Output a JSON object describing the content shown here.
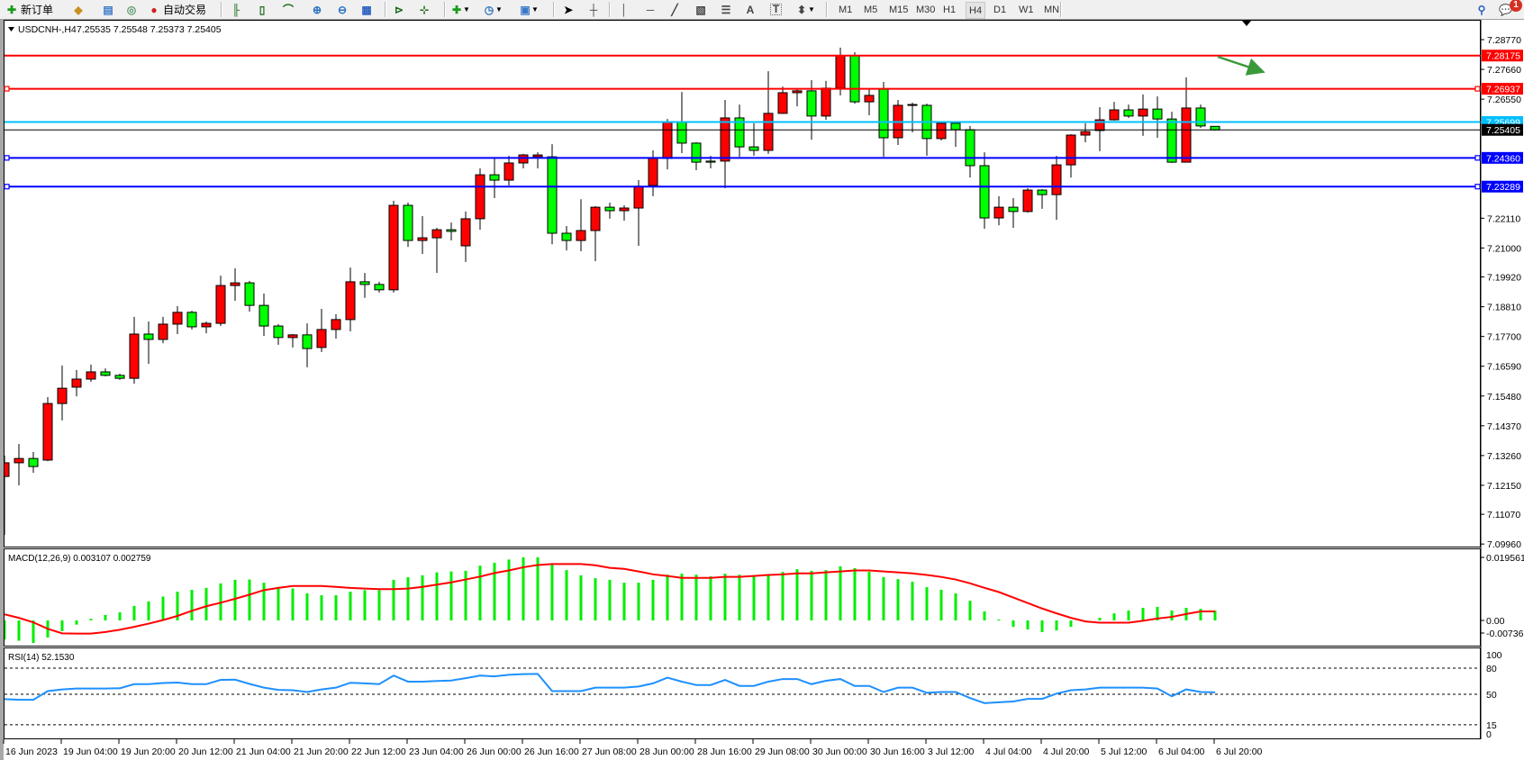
{
  "toolbar": {
    "new_order": "新订单",
    "auto_trading": "自动交易",
    "timeframes": [
      "M1",
      "M5",
      "M15",
      "M30",
      "H1",
      "H4",
      "D1",
      "W1",
      "MN"
    ],
    "active_timeframe": "H4",
    "notification_count": "1",
    "icons": [
      "new-order-icon",
      "market-watch-icon",
      "navigator-icon",
      "signals-icon",
      "auto-trading-icon",
      "bar-chart-icon",
      "candlestick-chart-icon",
      "line-chart-icon",
      "zoom-in-icon",
      "zoom-out-icon",
      "tile-windows-icon",
      "chart-shift-icon",
      "auto-scroll-icon",
      "indicators-icon",
      "periods-icon",
      "templates-icon",
      "cursor-icon",
      "crosshair-icon",
      "vertical-line-icon",
      "horizontal-line-icon",
      "trendline-icon",
      "equidistant-channel-icon",
      "fibonacci-icon",
      "text-icon",
      "text-label-icon",
      "arrows-icon",
      "search-icon",
      "notification-icon"
    ]
  },
  "header": {
    "symbol": "USDCNH-,H4",
    "ohlc": "7.25535 7.25548 7.25373 7.25405"
  },
  "colors": {
    "bull_candle": "#ff0000",
    "bear_candle": "#00ff00",
    "resistance_line": "#ff0000",
    "support_line": "#0000ff",
    "mid_line": "#00bfff",
    "bid_line": "#000000",
    "macd_histogram": "#00ee00",
    "macd_signal": "#ff0000",
    "rsi_line": "#1e90ff",
    "annotation_arrow": "#3a9a3a"
  },
  "chart_data": {
    "type": "candlestick",
    "symbol": "USDCNH-",
    "timeframe": "H4",
    "ylim": [
      7.0996,
      7.2877
    ],
    "candles": [
      [
        7.1248,
        7.1326,
        7.103,
        7.1299
      ],
      [
        7.1299,
        7.1369,
        7.1215,
        7.1315
      ],
      [
        7.1315,
        7.1339,
        7.1262,
        7.1285
      ],
      [
        7.1309,
        7.1544,
        7.1305,
        7.152
      ],
      [
        7.152,
        7.1662,
        7.1457,
        7.1577
      ],
      [
        7.1581,
        7.1645,
        7.1547,
        7.1611
      ],
      [
        7.1611,
        7.1665,
        7.1601,
        7.1638
      ],
      [
        7.1638,
        7.1651,
        7.1621,
        7.1625
      ],
      [
        7.1625,
        7.1631,
        7.1608,
        7.1614
      ],
      [
        7.1614,
        7.1843,
        7.1594,
        7.1779
      ],
      [
        7.1779,
        7.1826,
        7.1668,
        7.1759
      ],
      [
        7.1759,
        7.1843,
        7.1745,
        7.1816
      ],
      [
        7.1816,
        7.1883,
        7.1779,
        7.186
      ],
      [
        7.186,
        7.1866,
        7.1796,
        7.1806
      ],
      [
        7.1806,
        7.1826,
        7.1782,
        7.1819
      ],
      [
        7.1819,
        7.1997,
        7.1809,
        7.196
      ],
      [
        7.196,
        7.2024,
        7.1903,
        7.197
      ],
      [
        7.197,
        7.1977,
        7.1863,
        7.1886
      ],
      [
        7.1886,
        7.193,
        7.1772,
        7.1809
      ],
      [
        7.1809,
        7.1816,
        7.1739,
        7.1766
      ],
      [
        7.1766,
        7.1779,
        7.1729,
        7.1776
      ],
      [
        7.1776,
        7.1819,
        7.1655,
        7.1725
      ],
      [
        7.1729,
        7.1873,
        7.1712,
        7.1796
      ],
      [
        7.1796,
        7.1853,
        7.1762,
        7.1833
      ],
      [
        7.1833,
        7.2027,
        7.1789,
        7.1974
      ],
      [
        7.1974,
        7.2007,
        7.1914,
        7.1964
      ],
      [
        7.1964,
        7.1974,
        7.1934,
        7.1944
      ],
      [
        7.1944,
        7.2276,
        7.1934,
        7.2259
      ],
      [
        7.2259,
        7.2269,
        7.2104,
        7.2128
      ],
      [
        7.2128,
        7.2219,
        7.2078,
        7.2138
      ],
      [
        7.2138,
        7.2175,
        7.2007,
        7.2168
      ],
      [
        7.2168,
        7.2195,
        7.2128,
        7.2162
      ],
      [
        7.2108,
        7.2236,
        7.2048,
        7.2209
      ],
      [
        7.2209,
        7.2397,
        7.2168,
        7.2373
      ],
      [
        7.2373,
        7.2434,
        7.2286,
        7.2353
      ],
      [
        7.2353,
        7.2444,
        7.2333,
        7.2417
      ],
      [
        7.2417,
        7.2451,
        7.2397,
        7.2447
      ],
      [
        7.244,
        7.2457,
        7.2397,
        7.2447
      ],
      [
        7.244,
        7.2487,
        7.2114,
        7.2155
      ],
      [
        7.2155,
        7.2182,
        7.2091,
        7.2128
      ],
      [
        7.2128,
        7.2282,
        7.2088,
        7.2165
      ],
      [
        7.2165,
        7.2256,
        7.2051,
        7.2252
      ],
      [
        7.2252,
        7.2269,
        7.2209,
        7.2239
      ],
      [
        7.2239,
        7.2259,
        7.2202,
        7.2249
      ],
      [
        7.2249,
        7.2353,
        7.2108,
        7.233
      ],
      [
        7.2333,
        7.2464,
        7.2293,
        7.2434
      ],
      [
        7.2434,
        7.2581,
        7.2393,
        7.2568
      ],
      [
        7.2568,
        7.2682,
        7.2454,
        7.2491
      ],
      [
        7.2491,
        7.2494,
        7.239,
        7.242
      ],
      [
        7.2424,
        7.2444,
        7.2397,
        7.242
      ],
      [
        7.2424,
        7.2652,
        7.2323,
        7.2585
      ],
      [
        7.2585,
        7.2635,
        7.244,
        7.2477
      ],
      [
        7.2477,
        7.2565,
        7.2444,
        7.2464
      ],
      [
        7.2464,
        7.2759,
        7.2451,
        7.2602
      ],
      [
        7.2602,
        7.2702,
        7.26,
        7.2679
      ],
      [
        7.2679,
        7.2692,
        7.2628,
        7.2686
      ],
      [
        7.2686,
        7.2726,
        7.2504,
        7.2592
      ],
      [
        7.2592,
        7.2723,
        7.2578,
        7.2696
      ],
      [
        7.2696,
        7.2847,
        7.2669,
        7.2817
      ],
      [
        7.2817,
        7.283,
        7.2638,
        7.2645
      ],
      [
        7.2645,
        7.2696,
        7.2595,
        7.2669
      ],
      [
        7.2692,
        7.2719,
        7.244,
        7.2511
      ],
      [
        7.2511,
        7.2652,
        7.2484,
        7.2632
      ],
      [
        7.2635,
        7.2642,
        7.2531,
        7.2632
      ],
      [
        7.2632,
        7.2638,
        7.2444,
        7.2508
      ],
      [
        7.2508,
        7.2565,
        7.2501,
        7.2565
      ],
      [
        7.2565,
        7.2565,
        7.2477,
        7.2541
      ],
      [
        7.2541,
        7.2555,
        7.2363,
        7.2407
      ],
      [
        7.2407,
        7.2457,
        7.2172,
        7.2212
      ],
      [
        7.2212,
        7.2293,
        7.2185,
        7.2252
      ],
      [
        7.2252,
        7.2286,
        7.2175,
        7.2236
      ],
      [
        7.2236,
        7.2323,
        7.2232,
        7.2316
      ],
      [
        7.2316,
        7.2319,
        7.2246,
        7.2299
      ],
      [
        7.2299,
        7.2444,
        7.2205,
        7.241
      ],
      [
        7.241,
        7.2524,
        7.2363,
        7.2521
      ],
      [
        7.2521,
        7.2565,
        7.2494,
        7.2534
      ],
      [
        7.2538,
        7.2625,
        7.2461,
        7.2578
      ],
      [
        7.2578,
        7.2645,
        7.2575,
        7.2615
      ],
      [
        7.2615,
        7.2635,
        7.2585,
        7.2592
      ],
      [
        7.2592,
        7.2672,
        7.2518,
        7.2618
      ],
      [
        7.2618,
        7.2665,
        7.2511,
        7.2581
      ],
      [
        7.2581,
        7.2608,
        7.2417,
        7.242
      ],
      [
        7.242,
        7.2736,
        7.242,
        7.2622
      ],
      [
        7.2622,
        7.2635,
        7.2548,
        7.2555
      ],
      [
        7.25535,
        7.25548,
        7.25373,
        7.25405
      ]
    ],
    "x_labels": [
      "16 Jun 2023",
      "19 Jun 04:00",
      "19 Jun 20:00",
      "20 Jun 12:00",
      "21 Jun 04:00",
      "21 Jun 20:00",
      "22 Jun 12:00",
      "23 Jun 04:00",
      "26 Jun 00:00",
      "26 Jun 16:00",
      "27 Jun 08:00",
      "28 Jun 00:00",
      "28 Jun 16:00",
      "29 Jun 08:00",
      "30 Jun 00:00",
      "30 Jun 16:00",
      "3 Jul 12:00",
      "4 Jul 04:00",
      "4 Jul 20:00",
      "5 Jul 12:00",
      "6 Jul 04:00",
      "6 Jul 20:00"
    ],
    "price_ticks": [
      "7.28770",
      "7.27660",
      "7.26550",
      "7.22110",
      "7.21000",
      "7.19920",
      "7.18810",
      "7.17700",
      "7.16590",
      "7.15480",
      "7.14370",
      "7.13260",
      "7.12150",
      "7.11070",
      "7.09960"
    ],
    "price_lines": [
      {
        "value": "7.28175",
        "kind": "resistance",
        "color": "#ff0000",
        "selected": false
      },
      {
        "value": "7.26937",
        "kind": "resistance",
        "color": "#ff0000",
        "selected": true
      },
      {
        "value": "7.25699",
        "kind": "mid",
        "color": "#00bfff",
        "selected": false
      },
      {
        "value": "7.25405",
        "kind": "bid",
        "color": "#000000",
        "selected": false
      },
      {
        "value": "7.24360",
        "kind": "support",
        "color": "#0000ff",
        "selected": true
      },
      {
        "value": "7.23289",
        "kind": "support",
        "color": "#0000ff",
        "selected": true
      }
    ],
    "annotation": {
      "type": "arrow",
      "direction": "up-right"
    },
    "macd": {
      "label": "MACD(12,26,9) 0.003107 0.002759",
      "ylim": [
        -0.007367,
        0.019561
      ],
      "ticks": [
        "0.019561",
        "0.00",
        "-0.007367"
      ],
      "histogram": [
        -0.0059,
        -0.0063,
        -0.007,
        -0.0053,
        -0.0033,
        -0.0013,
        0.0005,
        0.0017,
        0.0025,
        0.0045,
        0.0059,
        0.0074,
        0.0089,
        0.0095,
        0.0101,
        0.0115,
        0.0126,
        0.0127,
        0.0117,
        0.0104,
        0.0099,
        0.0084,
        0.0078,
        0.0078,
        0.0089,
        0.0094,
        0.0094,
        0.0126,
        0.0134,
        0.014,
        0.0149,
        0.0152,
        0.0154,
        0.017,
        0.0179,
        0.0189,
        0.0196,
        0.0196,
        0.0177,
        0.0156,
        0.014,
        0.0131,
        0.0126,
        0.0117,
        0.0117,
        0.0126,
        0.0142,
        0.0145,
        0.0142,
        0.0137,
        0.0145,
        0.0142,
        0.0137,
        0.014,
        0.0151,
        0.0159,
        0.0154,
        0.0156,
        0.0168,
        0.0162,
        0.0151,
        0.0134,
        0.0128,
        0.012,
        0.0103,
        0.0095,
        0.0084,
        0.0061,
        0.0028,
        0.0003,
        -0.002,
        -0.0028,
        -0.0036,
        -0.0031,
        -0.002,
        -0.0001,
        0.0008,
        0.0022,
        0.0031,
        0.0039,
        0.0042,
        0.0031,
        0.0039,
        0.0036,
        0.0031
      ],
      "signal": [
        0.0019,
        0.0008,
        -0.0006,
        -0.0026,
        -0.004,
        -0.0041,
        -0.0041,
        -0.0036,
        -0.0029,
        -0.002,
        -0.001,
        0.0001,
        0.0014,
        0.003,
        0.0044,
        0.0055,
        0.0067,
        0.008,
        0.0094,
        0.0101,
        0.0107,
        0.0107,
        0.0107,
        0.0104,
        0.0101,
        0.0099,
        0.0097,
        0.0097,
        0.0099,
        0.0104,
        0.0111,
        0.0118,
        0.0127,
        0.0136,
        0.0147,
        0.0155,
        0.0165,
        0.0172,
        0.0175,
        0.0175,
        0.0175,
        0.0171,
        0.0163,
        0.016,
        0.0152,
        0.0143,
        0.0138,
        0.0132,
        0.0132,
        0.0132,
        0.0135,
        0.0135,
        0.0138,
        0.0141,
        0.0143,
        0.0146,
        0.0146,
        0.0149,
        0.0152,
        0.0155,
        0.0155,
        0.0152,
        0.0149,
        0.0146,
        0.0141,
        0.0135,
        0.0127,
        0.0115,
        0.0101,
        0.0088,
        0.0071,
        0.0054,
        0.0037,
        0.0022,
        0.0008,
        -0.0003,
        -0.0007,
        -0.0007,
        -0.0007,
        -0.0001,
        0.0006,
        0.0011,
        0.002,
        0.0028,
        0.0028
      ]
    },
    "rsi": {
      "label": "RSI(14) 52.1530",
      "ylim": [
        0,
        100
      ],
      "ticks": [
        "100",
        "80",
        "50",
        "15",
        "0"
      ],
      "levels": [
        80,
        50,
        15
      ],
      "values": [
        44.4,
        43.7,
        43.7,
        53.6,
        55.6,
        56.6,
        56.6,
        56.6,
        56.9,
        61.6,
        61.6,
        62.9,
        63.5,
        61.6,
        61.6,
        66.5,
        66.8,
        61.9,
        57.6,
        55.0,
        54.6,
        52.6,
        55.6,
        57.6,
        63.2,
        62.5,
        61.6,
        71.5,
        64.5,
        64.5,
        65.2,
        65.8,
        68.5,
        71.5,
        70.5,
        72.4,
        73.1,
        73.4,
        53.6,
        53.6,
        53.6,
        57.6,
        57.6,
        57.6,
        58.9,
        62.5,
        69.1,
        64.5,
        60.6,
        60.6,
        66.5,
        59.6,
        59.6,
        64.5,
        67.5,
        67.5,
        61.6,
        65.5,
        67.5,
        59.6,
        59.6,
        52.6,
        57.6,
        57.6,
        51.7,
        52.6,
        52.6,
        45.7,
        39.8,
        40.8,
        41.7,
        44.7,
        44.7,
        50.7,
        54.6,
        55.6,
        57.6,
        57.6,
        57.6,
        57.6,
        56.6,
        47.7,
        55.6,
        52.6,
        52.15
      ]
    }
  }
}
